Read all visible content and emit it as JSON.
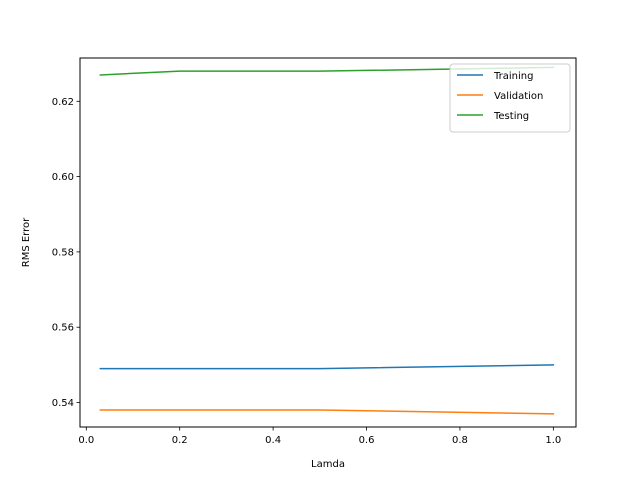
{
  "chart_data": {
    "type": "line",
    "title": "",
    "xlabel": "Lamda",
    "ylabel": "RMS Error",
    "xlim": [
      -0.0135,
      1.0485
    ],
    "ylim": [
      0.5335,
      0.6315
    ],
    "xticks": [
      0.0,
      0.2,
      0.4,
      0.6,
      0.8,
      1.0
    ],
    "xtick_labels": [
      "0.0",
      "0.2",
      "0.4",
      "0.6",
      "0.8",
      "1.0"
    ],
    "yticks": [
      0.54,
      0.56,
      0.58,
      0.6,
      0.62
    ],
    "ytick_labels": [
      "0.54",
      "0.56",
      "0.58",
      "0.60",
      "0.62"
    ],
    "grid": false,
    "legend_position": "top-right",
    "x": [
      0.03,
      0.2,
      0.5,
      1.0
    ],
    "series": [
      {
        "name": "Training",
        "color": "#1f77b4",
        "values": [
          0.549,
          0.549,
          0.549,
          0.55
        ]
      },
      {
        "name": "Validation",
        "color": "#ff7f0e",
        "values": [
          0.538,
          0.538,
          0.538,
          0.537
        ]
      },
      {
        "name": "Testing",
        "color": "#2ca02c",
        "values": [
          0.627,
          0.628,
          0.628,
          0.629
        ]
      }
    ]
  }
}
